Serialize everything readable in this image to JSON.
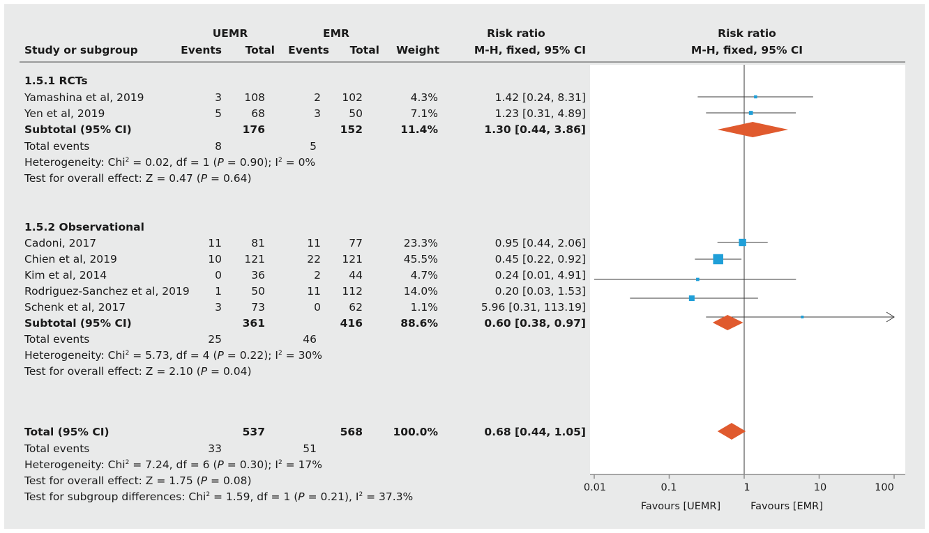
{
  "header": {
    "group1": "UEMR",
    "group2": "EMR",
    "col_study": "Study or subgroup",
    "col_events1": "Events",
    "col_total1": "Total",
    "col_events2": "Events",
    "col_total2": "Total",
    "col_weight": "Weight",
    "col_rr_title": "Risk ratio",
    "col_rr_method": "M-H, fixed, 95% CI",
    "plot_title": "Risk ratio",
    "plot_method": "M-H, fixed, 95% CI"
  },
  "sub1": {
    "title": "1.5.1 RCTs",
    "studies": [
      {
        "name": "Yamashina et al, 2019",
        "e1": "3",
        "t1": "108",
        "e2": "2",
        "t2": "102",
        "w": "4.3%",
        "ci": "1.42 [0.24, 8.31]"
      },
      {
        "name": "Yen et al, 2019",
        "e1": "5",
        "t1": "68",
        "e2": "3",
        "t2": "50",
        "w": "7.1%",
        "ci": "1.23 [0.31, 4.89]"
      }
    ],
    "subtotal": {
      "label": "Subtotal (95% CI)",
      "t1": "176",
      "t2": "152",
      "w": "11.4%",
      "ci": "1.30 [0.44, 3.86]"
    },
    "events": {
      "label": "Total events",
      "e1": "8",
      "e2": "5"
    },
    "het_a": "Heterogeneity: Chi",
    "het_b": " = 0.02, df = 1 (",
    "het_c": " = 0.90); I",
    "het_d": " = 0%",
    "test_a": "Test for overall effect: Z = 0.47 (",
    "test_b": " = 0.64)"
  },
  "sub2": {
    "title": "1.5.2 Observational",
    "studies": [
      {
        "name": "Cadoni, 2017",
        "e1": "11",
        "t1": "81",
        "e2": "11",
        "t2": "77",
        "w": "23.3%",
        "ci": "0.95 [0.44, 2.06]"
      },
      {
        "name": "Chien et al, 2019",
        "e1": "10",
        "t1": "121",
        "e2": "22",
        "t2": "121",
        "w": "45.5%",
        "ci": "0.45 [0.22, 0.92]"
      },
      {
        "name": "Kim et al, 2014",
        "e1": "0",
        "t1": "36",
        "e2": "2",
        "t2": "44",
        "w": "4.7%",
        "ci": "0.24 [0.01, 4.91]"
      },
      {
        "name": "Rodriguez-Sanchez et al, 2019",
        "e1": "1",
        "t1": "50",
        "e2": "11",
        "t2": "112",
        "w": "14.0%",
        "ci": "0.20 [0.03, 1.53]"
      },
      {
        "name": "Schenk et al, 2017",
        "e1": "3",
        "t1": "73",
        "e2": "0",
        "t2": "62",
        "w": "1.1%",
        "ci": "5.96 [0.31, 113.19]"
      }
    ],
    "subtotal": {
      "label": "Subtotal (95% CI)",
      "t1": "361",
      "t2": "416",
      "w": "88.6%",
      "ci": "0.60 [0.38, 0.97]"
    },
    "events": {
      "label": "Total events",
      "e1": "25",
      "e2": "46"
    },
    "het_a": "Heterogeneity: Chi",
    "het_b": " = 5.73, df = 4 (",
    "het_c": " = 0.22); I",
    "het_d": " = 30%",
    "test_a": "Test for overall effect: Z = 2.10 (",
    "test_b": " = 0.04)"
  },
  "total": {
    "label": "Total (95% CI)",
    "t1": "537",
    "t2": "568",
    "w": "100.0%",
    "ci": "0.68 [0.44, 1.05]",
    "events": {
      "label": "Total events",
      "e1": "33",
      "e2": "51"
    },
    "het_a": "Heterogeneity: Chi",
    "het_b": " = 7.24, df = 6 (",
    "het_c": " = 0.30); I",
    "het_d": " = 17%",
    "test_a": "Test for overall effect: Z = 1.75 (",
    "test_b": " = 0.08)",
    "sub_a": "Test for subgroup differences: Chi",
    "sub_b": " = 1.59, df = 1 (",
    "sub_c": " = 0.21), I",
    "sub_d": " = 37.3%"
  },
  "axis": {
    "ticks": [
      "0.01",
      "0.1",
      "1",
      "10",
      "100"
    ],
    "favours_left": "Favours [UEMR]",
    "favours_right": "Favours [EMR]"
  },
  "colors": {
    "square": "#1f9fd8",
    "diamond": "#e05a2e",
    "line": "#3a3a3a",
    "axis": "#8c8c8c"
  },
  "chart_data": {
    "type": "forest",
    "scale": "log",
    "xlim": [
      0.01,
      100
    ],
    "null_line": 1,
    "rows": [
      {
        "study": "Yamashina et al, 2019",
        "rr": 1.42,
        "lo": 0.24,
        "hi": 8.31,
        "weight": 4.3,
        "kind": "study"
      },
      {
        "study": "Yen et al, 2019",
        "rr": 1.23,
        "lo": 0.31,
        "hi": 4.89,
        "weight": 7.1,
        "kind": "study"
      },
      {
        "study": "Subtotal (95% CI)",
        "rr": 1.3,
        "lo": 0.44,
        "hi": 3.86,
        "weight": 11.4,
        "kind": "diamond"
      },
      {
        "study": "Cadoni, 2017",
        "rr": 0.95,
        "lo": 0.44,
        "hi": 2.06,
        "weight": 23.3,
        "kind": "study"
      },
      {
        "study": "Chien et al, 2019",
        "rr": 0.45,
        "lo": 0.22,
        "hi": 0.92,
        "weight": 45.5,
        "kind": "study"
      },
      {
        "study": "Kim et al, 2014",
        "rr": 0.24,
        "lo": 0.01,
        "hi": 4.91,
        "weight": 4.7,
        "kind": "study"
      },
      {
        "study": "Rodriguez-Sanchez et al, 2019",
        "rr": 0.2,
        "lo": 0.03,
        "hi": 1.53,
        "weight": 14.0,
        "kind": "study"
      },
      {
        "study": "Schenk et al, 2017",
        "rr": 5.96,
        "lo": 0.31,
        "hi": 113.19,
        "weight": 1.1,
        "kind": "study"
      },
      {
        "study": "Subtotal (95% CI)",
        "rr": 0.6,
        "lo": 0.38,
        "hi": 0.97,
        "weight": 88.6,
        "kind": "diamond"
      },
      {
        "study": "Total (95% CI)",
        "rr": 0.68,
        "lo": 0.44,
        "hi": 1.05,
        "weight": 100.0,
        "kind": "diamond"
      }
    ]
  }
}
